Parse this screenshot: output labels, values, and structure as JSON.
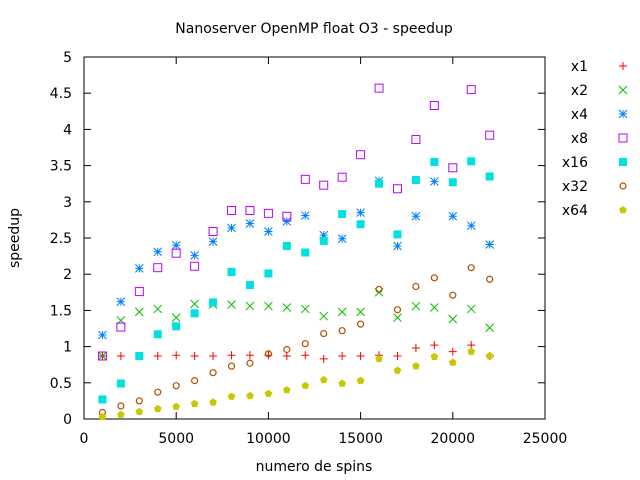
{
  "chart_data": {
    "type": "scatter",
    "title": "Nanoserver OpenMP float O3 - speedup",
    "xlabel": "numero de spins",
    "ylabel": "speedup",
    "xlim": [
      0,
      25000
    ],
    "ylim": [
      0,
      5
    ],
    "xticks": [
      0,
      5000,
      10000,
      15000,
      20000,
      25000
    ],
    "yticks": [
      0,
      0.5,
      1,
      1.5,
      2,
      2.5,
      3,
      3.5,
      4,
      4.5,
      5
    ],
    "xtick_labels": [
      "0",
      "5000",
      "10000",
      "15000",
      "20000",
      "25000"
    ],
    "ytick_labels": [
      "0",
      "0.5",
      "1",
      "1.5",
      "2",
      "2.5",
      "3",
      "3.5",
      "4",
      "4.5",
      "5"
    ],
    "grid": false,
    "legend_position": "outside-right",
    "x": [
      1000,
      2000,
      3000,
      4000,
      5000,
      6000,
      7000,
      8000,
      9000,
      10000,
      11000,
      12000,
      13000,
      14000,
      15000,
      16000,
      17000,
      18000,
      19000,
      20000,
      21000,
      22000
    ],
    "series": [
      {
        "name": "x1",
        "marker": "plus",
        "color": "#ff0000",
        "values": [
          0.87,
          0.87,
          0.87,
          0.87,
          0.88,
          0.87,
          0.87,
          0.88,
          0.88,
          0.88,
          0.87,
          0.88,
          0.83,
          0.87,
          0.87,
          0.88,
          0.87,
          0.98,
          1.02,
          0.93,
          1.02,
          0.87
        ]
      },
      {
        "name": "x2",
        "marker": "cross",
        "color": "#00c000",
        "values": [
          0.87,
          1.36,
          1.48,
          1.52,
          1.4,
          1.59,
          1.58,
          1.58,
          1.56,
          1.56,
          1.54,
          1.52,
          1.42,
          1.48,
          1.48,
          1.75,
          1.4,
          1.56,
          1.54,
          1.38,
          1.52,
          1.26
        ]
      },
      {
        "name": "x4",
        "marker": "star",
        "color": "#0080ff",
        "values": [
          1.16,
          1.62,
          2.08,
          2.31,
          2.4,
          2.26,
          2.45,
          2.64,
          2.7,
          2.59,
          2.73,
          2.81,
          2.54,
          2.49,
          2.85,
          3.29,
          2.39,
          2.8,
          3.28,
          2.8,
          2.67,
          2.41
        ]
      },
      {
        "name": "x8",
        "marker": "square-open",
        "color": "#c000ff",
        "values": [
          0.87,
          1.27,
          1.76,
          2.09,
          2.29,
          2.11,
          2.59,
          2.88,
          2.88,
          2.84,
          2.8,
          3.31,
          3.23,
          3.34,
          3.65,
          4.57,
          3.18,
          3.86,
          4.33,
          3.47,
          4.55,
          3.92
        ]
      },
      {
        "name": "x16",
        "marker": "square-filled",
        "color": "#00e0e0",
        "values": [
          0.27,
          0.49,
          0.87,
          1.17,
          1.28,
          1.46,
          1.61,
          2.03,
          1.85,
          2.01,
          2.39,
          2.3,
          2.46,
          2.83,
          2.69,
          3.25,
          2.55,
          3.3,
          3.55,
          3.27,
          3.56,
          3.35
        ]
      },
      {
        "name": "x32",
        "marker": "circle-open",
        "color": "#b05000",
        "values": [
          0.09,
          0.18,
          0.25,
          0.37,
          0.46,
          0.53,
          0.64,
          0.73,
          0.77,
          0.9,
          0.96,
          1.04,
          1.18,
          1.22,
          1.31,
          1.79,
          1.51,
          1.83,
          1.95,
          1.71,
          2.09,
          1.93
        ]
      },
      {
        "name": "x64",
        "marker": "pentagon-filled",
        "color": "#c8c800",
        "values": [
          0.03,
          0.06,
          0.1,
          0.14,
          0.17,
          0.21,
          0.23,
          0.31,
          0.32,
          0.35,
          0.4,
          0.46,
          0.54,
          0.49,
          0.53,
          0.83,
          0.67,
          0.73,
          0.86,
          0.78,
          0.93,
          0.87
        ]
      }
    ]
  }
}
